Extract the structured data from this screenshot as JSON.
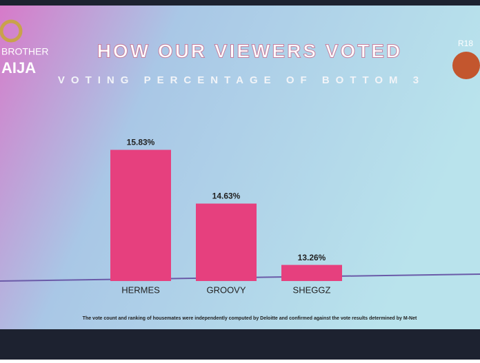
{
  "chart_data": {
    "type": "bar",
    "title": "HOW OUR VIEWERS VOTED",
    "subtitle": "VOTING PERCENTAGE OF BOTTOM 3",
    "logo": [
      "BROTHER",
      "AIJA"
    ],
    "rating": "R18",
    "footnote": "The vote count and ranking of housemates were independently computed by Deloitte and confirmed against the vote results determined by M-Net",
    "categories": [
      "HERMES",
      "GROOVY",
      "SHEGGZ"
    ],
    "values": [
      15.83,
      14.63,
      13.26
    ],
    "value_labels": [
      "15.83%",
      "14.63%",
      "13.26%"
    ],
    "color": "#e6407e",
    "ylim": [
      12.9,
      16.1
    ]
  }
}
